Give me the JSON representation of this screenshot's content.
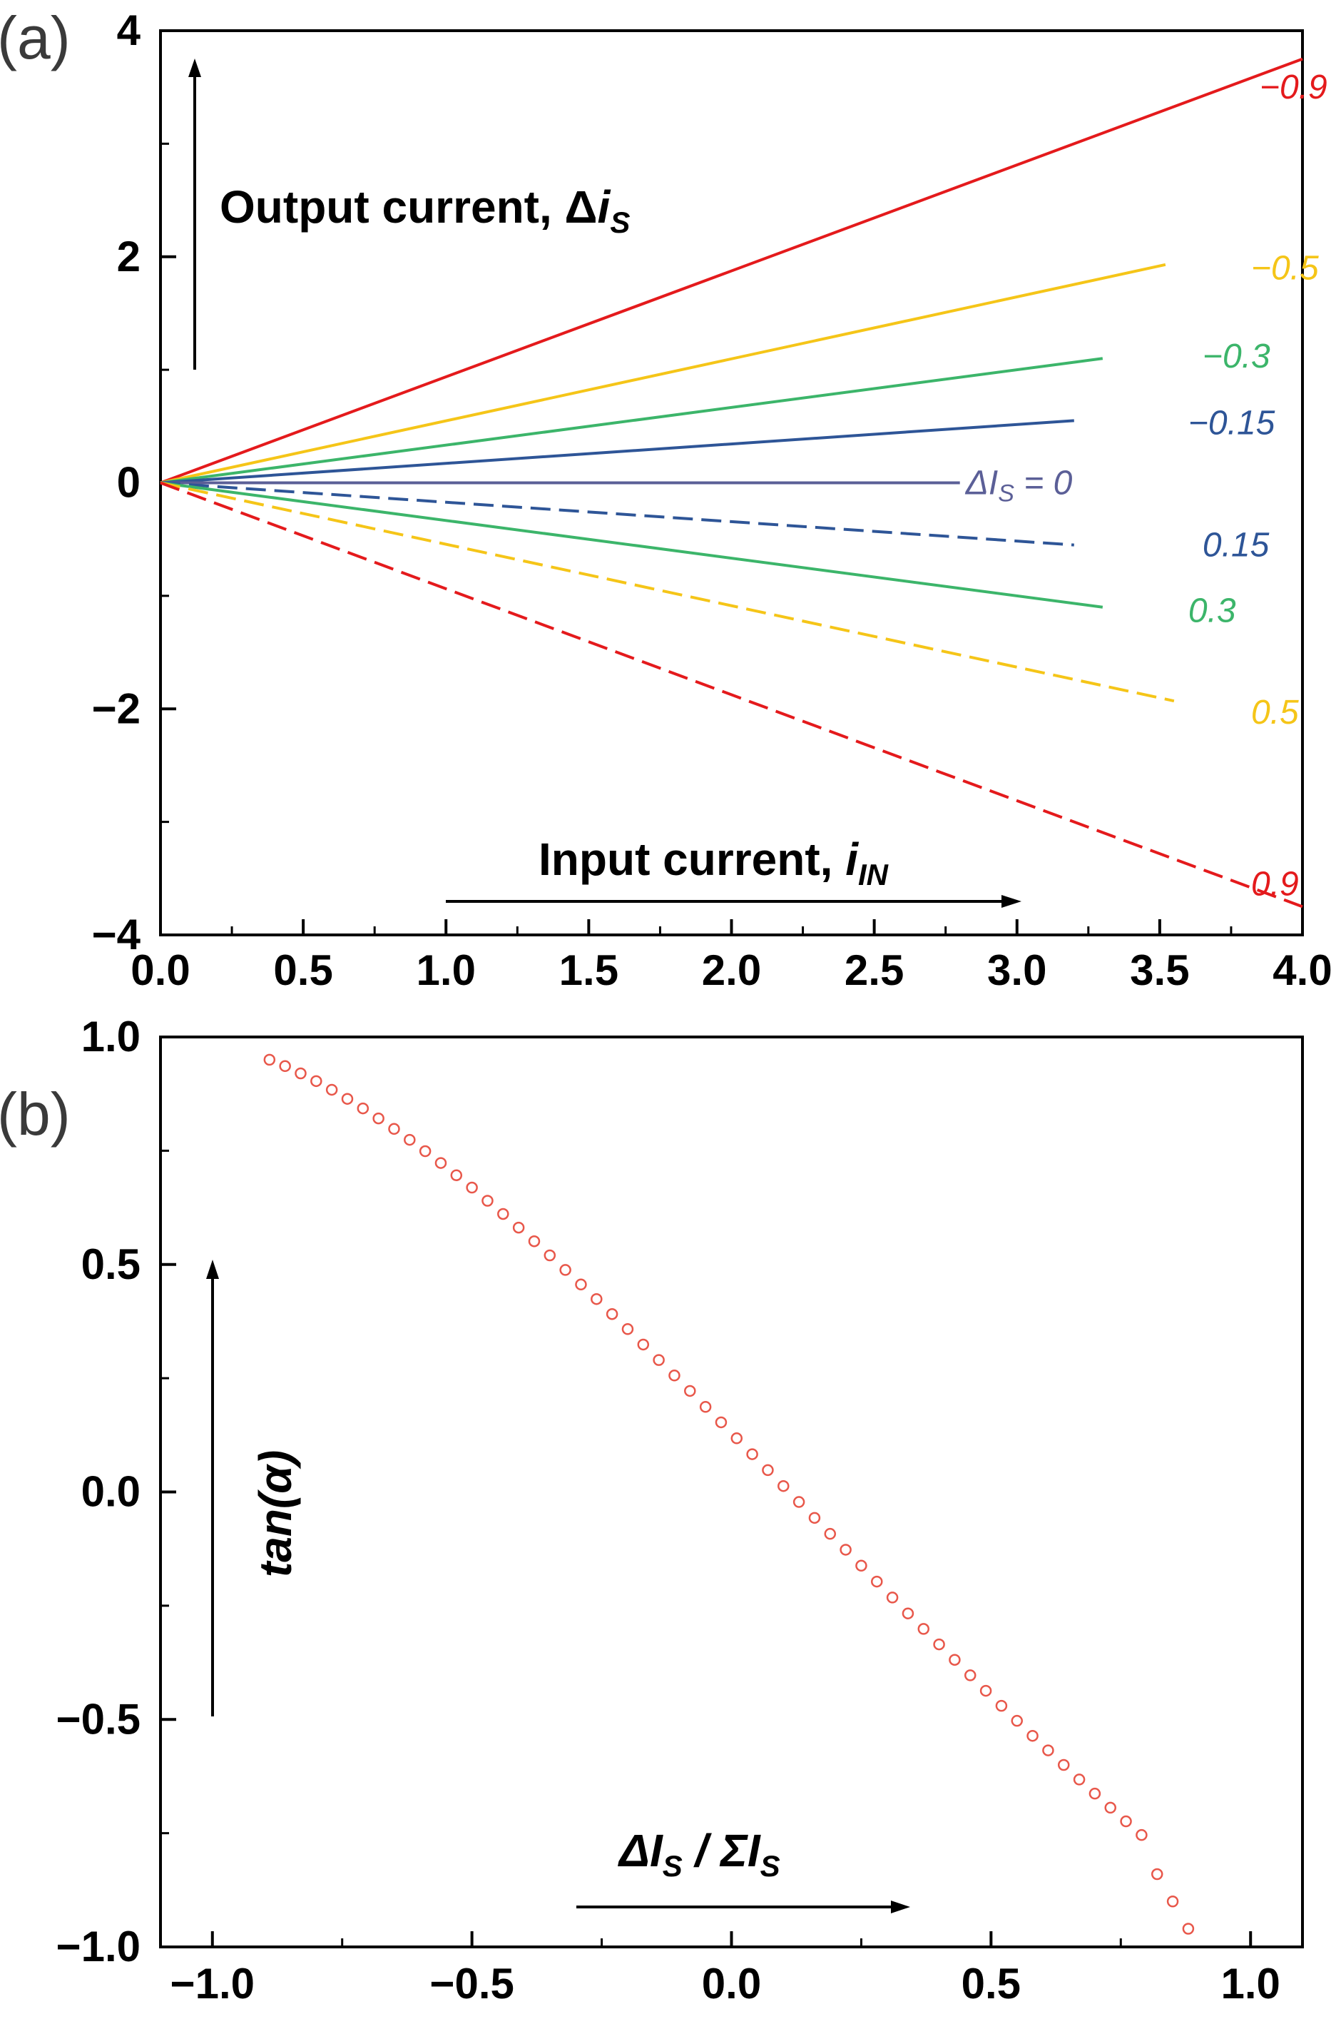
{
  "panels": [
    {
      "label": "(a)"
    },
    {
      "label": "(b)"
    }
  ],
  "chart_data": [
    {
      "type": "line",
      "x_label_text": "Input current, ",
      "x_label_sub": "i",
      "x_label_subscript": "IN",
      "y_label_text": "Output current, Δ",
      "y_label_sub": "i",
      "y_label_subscript": "S",
      "xlim": [
        0,
        4
      ],
      "ylim": [
        -4,
        4
      ],
      "xticks": [
        "0.0",
        "0.5",
        "1.0",
        "1.5",
        "2.0",
        "2.5",
        "3.0",
        "3.5",
        "4.0"
      ],
      "yticks": [
        "−4",
        "−2",
        "0",
        "2",
        "4"
      ],
      "grid": false,
      "series": [
        {
          "label": "−0.9",
          "color": "#e41a1c",
          "dash": "solid",
          "x": [
            0,
            4
          ],
          "y": [
            0,
            3.75
          ],
          "label_xy": [
            3.85,
            3.5
          ]
        },
        {
          "label": "−0.5",
          "color": "#f5c518",
          "dash": "solid",
          "x": [
            0,
            3.52
          ],
          "y": [
            0,
            1.93
          ],
          "label_xy": [
            3.82,
            1.9
          ]
        },
        {
          "label": "−0.3",
          "color": "#3cb56a",
          "dash": "solid",
          "x": [
            0,
            3.3
          ],
          "y": [
            0,
            1.1
          ],
          "label_xy": [
            3.65,
            1.12
          ]
        },
        {
          "label": "−0.15",
          "color": "#2e5597",
          "dash": "solid",
          "x": [
            0,
            3.2
          ],
          "y": [
            0,
            0.55
          ],
          "label_xy": [
            3.6,
            0.53
          ]
        },
        {
          "label": "ΔI",
          "label_sub": "S",
          "label_suffix": " = 0",
          "color": "#5b5f97",
          "dash": "solid",
          "x": [
            0,
            2.8
          ],
          "y": [
            0,
            0
          ],
          "label_xy": [
            2.82,
            0
          ]
        },
        {
          "label": "0.15",
          "color": "#2e5597",
          "dash": "dashed",
          "x": [
            0,
            3.2
          ],
          "y": [
            0,
            -0.55
          ],
          "label_xy": [
            3.65,
            -0.55
          ]
        },
        {
          "label": "0.3",
          "color": "#3cb56a",
          "dash": "solid",
          "x": [
            0,
            3.3
          ],
          "y": [
            0,
            -1.1
          ],
          "label_xy": [
            3.6,
            -1.13
          ]
        },
        {
          "label": "0.5",
          "color": "#f5c518",
          "dash": "dashed",
          "x": [
            0,
            3.55
          ],
          "y": [
            0,
            -1.93
          ],
          "label_xy": [
            3.82,
            -2.03
          ]
        },
        {
          "label": "0.9",
          "color": "#e41a1c",
          "dash": "dashed",
          "x": [
            0,
            4
          ],
          "y": [
            0,
            -3.75
          ],
          "label_xy": [
            3.82,
            -3.55
          ]
        }
      ]
    },
    {
      "type": "scatter",
      "x_label_text": "ΔI",
      "x_label_subscript": "S",
      "x_label_mid": " / ΣI",
      "x_label_subscript2": "S",
      "y_label_text": "tan(α)",
      "xlim": [
        -1.1,
        1.1
      ],
      "ylim": [
        -1.0,
        1.0
      ],
      "xticks": [
        "−1.0",
        "−0.5",
        "0.0",
        "0.5",
        "1.0"
      ],
      "yticks": [
        "−1.0",
        "−0.5",
        "0.0",
        "0.5",
        "1.0"
      ],
      "grid": false,
      "marker": "open-circle",
      "color": "#e8574a",
      "x": [
        -0.89,
        -0.86,
        -0.83,
        -0.8,
        -0.77,
        -0.74,
        -0.71,
        -0.68,
        -0.65,
        -0.62,
        -0.59,
        -0.56,
        -0.53,
        -0.5,
        -0.47,
        -0.44,
        -0.41,
        -0.38,
        -0.35,
        -0.32,
        -0.29,
        -0.26,
        -0.23,
        -0.2,
        -0.17,
        -0.14,
        -0.11,
        -0.08,
        -0.05,
        -0.02,
        0.01,
        0.04,
        0.07,
        0.1,
        0.13,
        0.16,
        0.19,
        0.22,
        0.25,
        0.28,
        0.31,
        0.34,
        0.37,
        0.4,
        0.43,
        0.46,
        0.49,
        0.52,
        0.55,
        0.58,
        0.61,
        0.64,
        0.67,
        0.7,
        0.73,
        0.76,
        0.79,
        0.82,
        0.85,
        0.88
      ],
      "y": [
        0.95,
        0.936,
        0.92,
        0.903,
        0.884,
        0.864,
        0.843,
        0.821,
        0.798,
        0.774,
        0.749,
        0.723,
        0.696,
        0.669,
        0.64,
        0.611,
        0.581,
        0.551,
        0.52,
        0.488,
        0.456,
        0.424,
        0.391,
        0.358,
        0.324,
        0.29,
        0.256,
        0.222,
        0.187,
        0.153,
        0.118,
        0.083,
        0.048,
        0.013,
        -0.022,
        -0.057,
        -0.092,
        -0.127,
        -0.162,
        -0.197,
        -0.232,
        -0.267,
        -0.301,
        -0.335,
        -0.369,
        -0.403,
        -0.437,
        -0.47,
        -0.503,
        -0.536,
        -0.568,
        -0.6,
        -0.632,
        -0.663,
        -0.694,
        -0.724,
        -0.754,
        -0.84,
        -0.9,
        -0.96
      ]
    }
  ]
}
